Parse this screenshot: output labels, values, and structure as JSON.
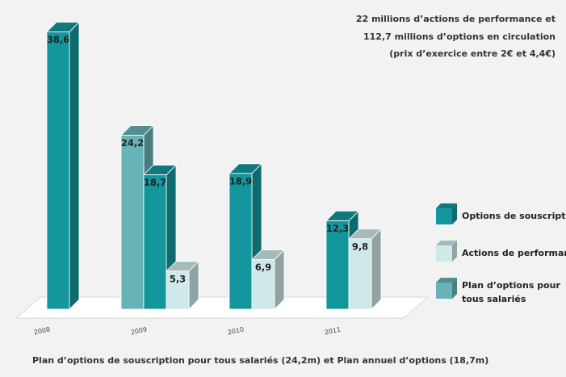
{
  "chart_data": {
    "type": "bar3d",
    "notes": [
      "22 millions d’actions de performance et",
      "112,7 millions d’options en circulation",
      "(prix d’exercice entre 2€ et 4,4€)"
    ],
    "caption": "Plan d’options de souscription pour tous salariés (24,2m) et Plan annuel d’options (18,7m)",
    "categories": [
      "2008",
      "2009",
      "2010",
      "2011"
    ],
    "series": [
      {
        "name": "Options de souscription",
        "color": "#13979c",
        "values": [
          38.6,
          18.7,
          18.9,
          12.3
        ],
        "value_labels": [
          "38,6",
          "18,7",
          "18,9",
          "12,3"
        ]
      },
      {
        "name": "Actions de performance",
        "color": "#cfe8ea",
        "values": [
          null,
          5.3,
          6.9,
          9.8
        ],
        "value_labels": [
          null,
          "5,3",
          "6,9",
          "9,8"
        ]
      },
      {
        "name": "Plan d’options pour tous salariés",
        "color": "#68b3b7",
        "values": [
          null,
          24.2,
          null,
          null
        ],
        "value_labels": [
          null,
          "24,2",
          null,
          null
        ]
      }
    ]
  }
}
